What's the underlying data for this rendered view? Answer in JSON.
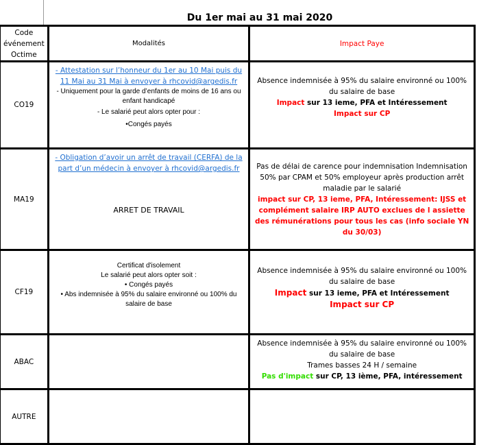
{
  "title": "Du 1er mai au 31 mai  2020",
  "headers": {
    "code": "Code événement Octime",
    "modalites": "Modalités",
    "impact": "Impact Paye"
  },
  "colors": {
    "red": "#ff0000",
    "green": "#33dd00",
    "link": "#1f6fd0"
  },
  "rows": [
    {
      "code": "CO19",
      "link": "- Attestation  sur l’honneur du 1er au 10 Mai puis du 11 Mai au 31 Mai à envoyer à rhcovid@argedis.fr",
      "lines": [
        "- Uniquement pour la garde d’enfants de moins de 16 ans ou enfant handicapé",
        "- Le salarié peut alors opter pour :",
        "•Congés payés"
      ],
      "impact": {
        "text": "Absence indemnisée à 95% du salaire environné ou 100% du salaire de base",
        "red1": "Impact",
        "rest1": " sur 13 ieme, PFA et Intéressement",
        "red2": "Impact sur CP"
      }
    },
    {
      "code": "MA19",
      "link": "-  Obligation d’avoir un arrêt de travail (CERFA) de la part d’un médecin à envoyer à rhcovid@argedis.fr",
      "extra": "ARRET DE TRAVAIL",
      "impact": {
        "text": "Pas de délai de carence pour indemnisation Indemnisation 50% par CPAM  et 50% employeur après production arrêt maladie par le salarié",
        "red": "impact sur CP, 13 ieme, PFA, Intéressement: IJSS  et complément salaire IRP AUTO exclues de l assiette des rémunérations pour tous les cas (info sociale YN du 30/03)"
      }
    },
    {
      "code": "CF19",
      "lines": [
        "Certificat d'isolement",
        "Le salarié peut alors opter soit :",
        "• Congés payés",
        "• Abs indemnisée à 95% du salaire environné ou 100% du salaire de base"
      ],
      "impact": {
        "text": "Absence indemnisée à 95% du salaire environné ou 100% du salaire de base",
        "red1": "Impact",
        "rest1": " sur 13 ieme, PFA et Intéressement",
        "red2": "Impact sur CP"
      }
    },
    {
      "code": "ABAC",
      "impact": {
        "text": "Absence indemnisée à 95% du salaire environné ou 100% du salaire de base",
        "text2": "Trames basses 24 H / semaine",
        "green": "Pas d'impact",
        "rest": " sur CP, 13 ième, PFA, intéressement"
      }
    },
    {
      "code": "AUTRE"
    }
  ]
}
